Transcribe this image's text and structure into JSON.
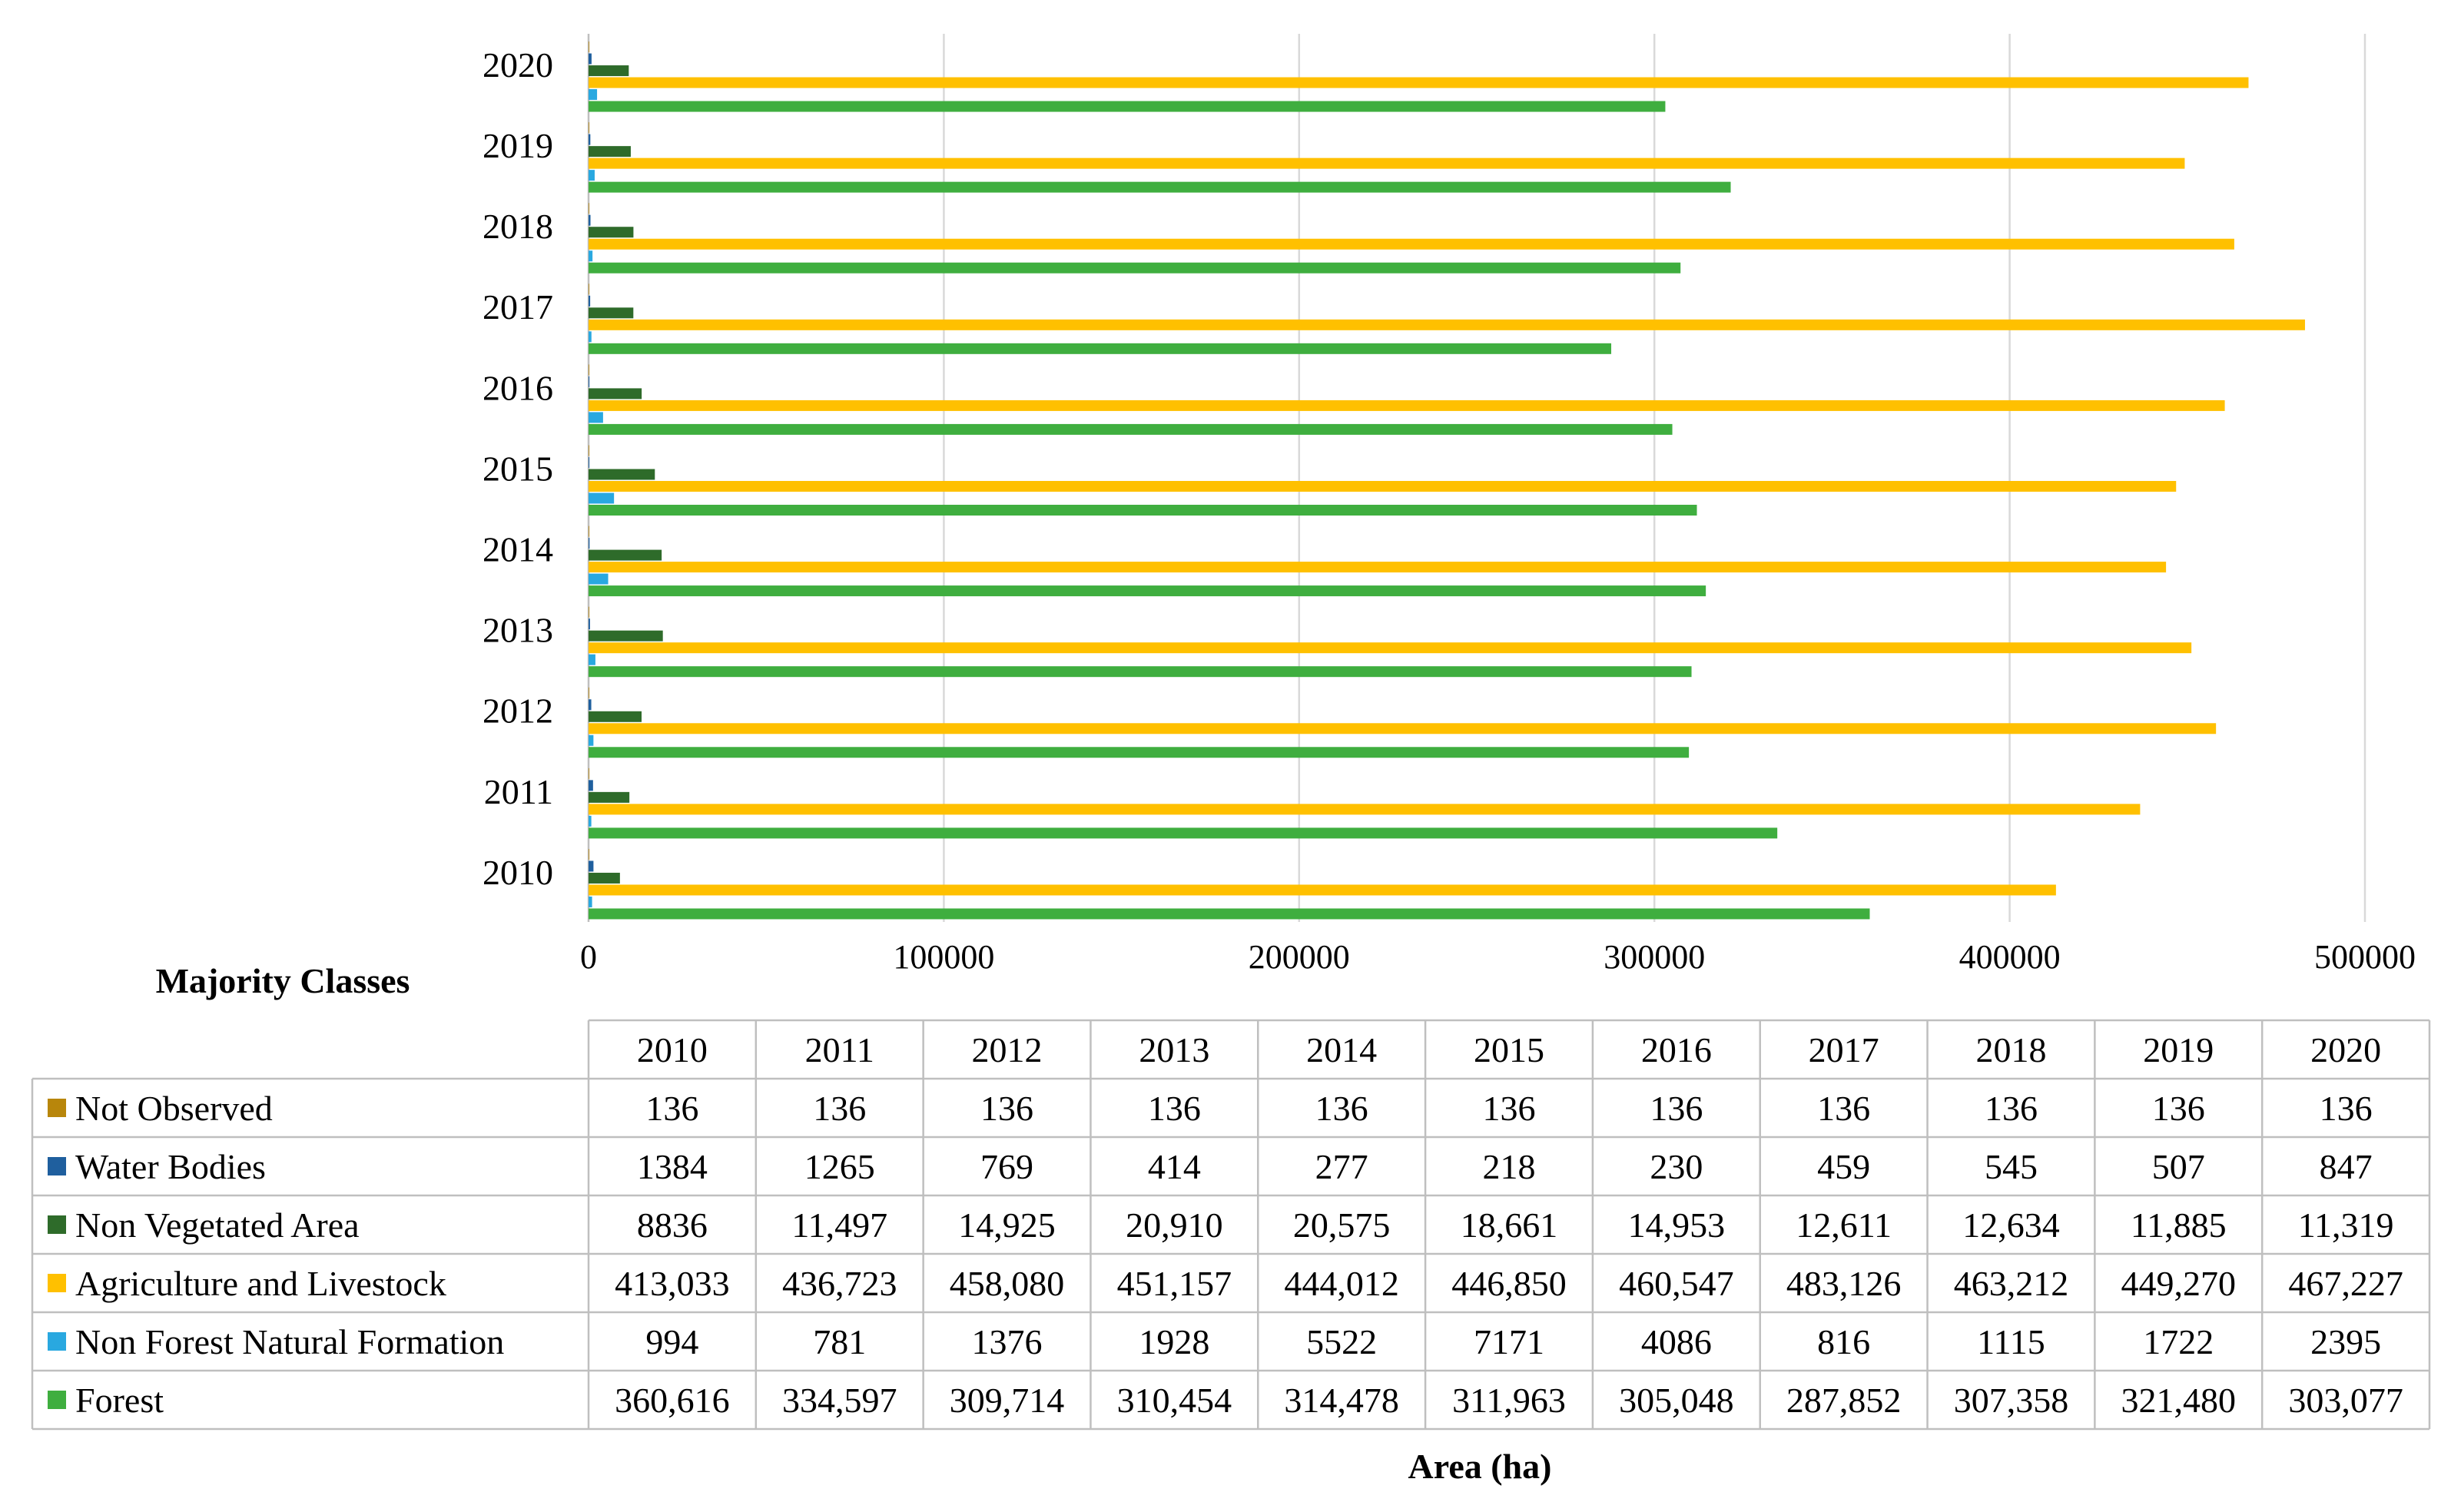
{
  "chart_data": {
    "type": "bar",
    "orientation": "horizontal",
    "categories": [
      "2010",
      "2011",
      "2012",
      "2013",
      "2014",
      "2015",
      "2016",
      "2017",
      "2018",
      "2019",
      "2020"
    ],
    "xlim": [
      0,
      500000
    ],
    "xticks": [
      "0",
      "100000",
      "200000",
      "300000",
      "400000",
      "500000"
    ],
    "xlabel": "Area (ha)",
    "table_header": "Majority Classes",
    "grid": true,
    "series": [
      {
        "name": "Not Observed",
        "color": "#b8860b",
        "values": [
          136,
          136,
          136,
          136,
          136,
          136,
          136,
          136,
          136,
          136,
          136
        ],
        "labels": [
          "136",
          "136",
          "136",
          "136",
          "136",
          "136",
          "136",
          "136",
          "136",
          "136",
          "136"
        ]
      },
      {
        "name": "Water Bodies",
        "color": "#1f5f9e",
        "values": [
          1384,
          1265,
          769,
          414,
          277,
          218,
          230,
          459,
          545,
          507,
          847
        ],
        "labels": [
          "1384",
          "1265",
          "769",
          "414",
          "277",
          "218",
          "230",
          "459",
          "545",
          "507",
          "847"
        ]
      },
      {
        "name": "Non Vegetated Area",
        "color": "#2e6b2a",
        "values": [
          8836,
          11497,
          14925,
          20910,
          20575,
          18661,
          14953,
          12611,
          12634,
          11885,
          11319
        ],
        "labels": [
          "8836",
          "11,497",
          "14,925",
          "20,910",
          "20,575",
          "18,661",
          "14,953",
          "12,611",
          "12,634",
          "11,885",
          "11,319"
        ]
      },
      {
        "name": "Agriculture and Livestock",
        "color": "#ffc000",
        "values": [
          413033,
          436723,
          458080,
          451157,
          444012,
          446850,
          460547,
          483126,
          463212,
          449270,
          467227
        ],
        "labels": [
          "413,033",
          "436,723",
          "458,080",
          "451,157",
          "444,012",
          "446,850",
          "460,547",
          "483,126",
          "463,212",
          "449,270",
          "467,227"
        ]
      },
      {
        "name": "Non Forest Natural Formation",
        "color": "#29a8e0",
        "values": [
          994,
          781,
          1376,
          1928,
          5522,
          7171,
          4086,
          816,
          1115,
          1722,
          2395
        ],
        "labels": [
          "994",
          "781",
          "1376",
          "1928",
          "5522",
          "7171",
          "4086",
          "816",
          "1115",
          "1722",
          "2395"
        ]
      },
      {
        "name": "Forest",
        "color": "#3fae3f",
        "values": [
          360616,
          334597,
          309714,
          310454,
          314478,
          311963,
          305048,
          287852,
          307358,
          321480,
          303077
        ],
        "labels": [
          "360,616",
          "334,597",
          "309,714",
          "310,454",
          "314,478",
          "311,963",
          "305,048",
          "287,852",
          "307,358",
          "321,480",
          "303,077"
        ]
      }
    ]
  }
}
